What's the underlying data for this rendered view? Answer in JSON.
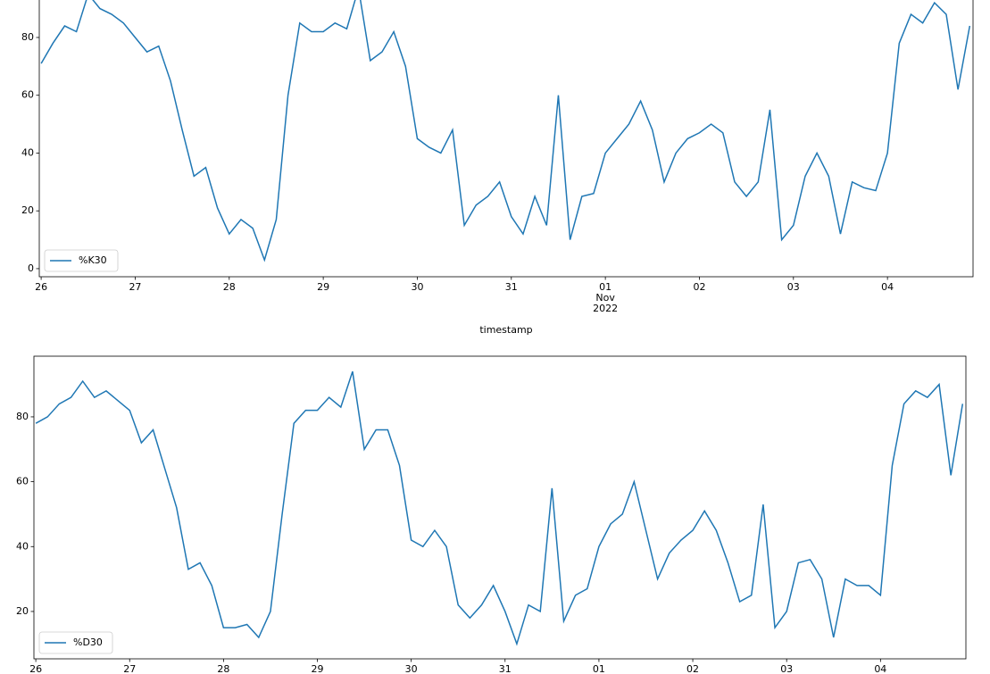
{
  "chart_data": [
    {
      "type": "line",
      "xlabel": "timestamp",
      "grid": false,
      "legend": "lower left",
      "x": [
        0,
        0.125,
        0.25,
        0.375,
        0.5,
        0.625,
        0.75,
        0.875,
        1,
        1.125,
        1.25,
        1.375,
        1.5,
        1.625,
        1.75,
        1.875,
        2,
        2.125,
        2.25,
        2.375,
        2.5,
        2.625,
        2.75,
        2.875,
        3,
        3.125,
        3.25,
        3.375,
        3.5,
        3.625,
        3.75,
        3.875,
        4,
        4.125,
        4.25,
        4.375,
        4.5,
        4.625,
        4.75,
        4.875,
        5,
        5.125,
        5.25,
        5.375,
        5.5,
        5.625,
        5.75,
        5.875,
        6,
        6.125,
        6.25,
        6.375,
        6.5,
        6.625,
        6.75,
        6.875,
        7,
        7.125,
        7.25,
        7.375,
        7.5,
        7.625,
        7.75,
        7.875,
        8,
        8.125,
        8.25,
        8.375,
        8.5,
        8.625,
        8.75,
        8.875,
        9,
        9.125,
        9.25,
        9.375,
        9.5,
        9.625,
        9.75,
        9.875
      ],
      "series": [
        {
          "name": "%K30",
          "color": "#1f77b4",
          "values": [
            71,
            78,
            84,
            82,
            95,
            90,
            88,
            85,
            80,
            75,
            77,
            65,
            48,
            32,
            35,
            21,
            12,
            17,
            14,
            3,
            17,
            60,
            85,
            82,
            82,
            85,
            83,
            97,
            72,
            75,
            82,
            70,
            45,
            42,
            40,
            48,
            15,
            22,
            25,
            30,
            18,
            12,
            25,
            15,
            60,
            10,
            25,
            26,
            40,
            45,
            50,
            58,
            48,
            30,
            40,
            45,
            47,
            50,
            47,
            30,
            25,
            30,
            55,
            10,
            15,
            32,
            40,
            32,
            12,
            30,
            28,
            27,
            40,
            78,
            88,
            85,
            92,
            88,
            62,
            84
          ]
        }
      ],
      "xlim": [
        -0.02,
        9.91
      ],
      "ylim": [
        -2.8,
        97.6
      ],
      "yticks": [
        0,
        20,
        40,
        60,
        80
      ],
      "xticks": [
        {
          "value": 0,
          "label": "26"
        },
        {
          "value": 1,
          "label": "27"
        },
        {
          "value": 2,
          "label": "28"
        },
        {
          "value": 3,
          "label": "29"
        },
        {
          "value": 4,
          "label": "30"
        },
        {
          "value": 5,
          "label": "31"
        },
        {
          "value": 6,
          "label": "01",
          "sublabels": [
            "Nov",
            "2022"
          ]
        },
        {
          "value": 7,
          "label": "02"
        },
        {
          "value": 8,
          "label": "03"
        },
        {
          "value": 9,
          "label": "04"
        }
      ]
    },
    {
      "type": "line",
      "grid": false,
      "legend": "lower left",
      "x": [
        0,
        0.125,
        0.25,
        0.375,
        0.5,
        0.625,
        0.75,
        0.875,
        1,
        1.125,
        1.25,
        1.375,
        1.5,
        1.625,
        1.75,
        1.875,
        2,
        2.125,
        2.25,
        2.375,
        2.5,
        2.625,
        2.75,
        2.875,
        3,
        3.125,
        3.25,
        3.375,
        3.5,
        3.625,
        3.75,
        3.875,
        4,
        4.125,
        4.25,
        4.375,
        4.5,
        4.625,
        4.75,
        4.875,
        5,
        5.125,
        5.25,
        5.375,
        5.5,
        5.625,
        5.75,
        5.875,
        6,
        6.125,
        6.25,
        6.375,
        6.5,
        6.625,
        6.75,
        6.875,
        7,
        7.125,
        7.25,
        7.375,
        7.5,
        7.625,
        7.75,
        7.875,
        8,
        8.125,
        8.25,
        8.375,
        8.5,
        8.625,
        8.75,
        8.875,
        9,
        9.125,
        9.25,
        9.375,
        9.5,
        9.625,
        9.75,
        9.875
      ],
      "series": [
        {
          "name": "%D30",
          "color": "#1f77b4",
          "values": [
            78,
            80,
            84,
            86,
            91,
            86,
            88,
            85,
            82,
            72,
            76,
            64,
            52,
            33,
            35,
            28,
            15,
            15,
            16,
            12,
            20,
            50,
            78,
            82,
            82,
            86,
            83,
            94,
            70,
            76,
            76,
            65,
            42,
            40,
            45,
            40,
            22,
            18,
            22,
            28,
            20,
            10,
            22,
            20,
            58,
            17,
            25,
            27,
            40,
            47,
            50,
            60,
            45,
            30,
            38,
            42,
            45,
            51,
            45,
            35,
            23,
            25,
            53,
            15,
            20,
            35,
            36,
            30,
            12,
            30,
            28,
            28,
            25,
            65,
            84,
            88,
            86,
            90,
            62,
            84
          ]
        }
      ],
      "xlim": [
        -0.02,
        9.91
      ],
      "ylim": [
        5.4,
        98.7
      ],
      "yticks": [
        20,
        40,
        60,
        80
      ],
      "xticks": [
        {
          "value": 0,
          "label": "26"
        },
        {
          "value": 1,
          "label": "27"
        },
        {
          "value": 2,
          "label": "28"
        },
        {
          "value": 3,
          "label": "29"
        },
        {
          "value": 4,
          "label": "30"
        },
        {
          "value": 5,
          "label": "31"
        },
        {
          "value": 6,
          "label": "01"
        },
        {
          "value": 7,
          "label": "02"
        },
        {
          "value": 8,
          "label": "03"
        },
        {
          "value": 9,
          "label": "04"
        }
      ]
    }
  ]
}
